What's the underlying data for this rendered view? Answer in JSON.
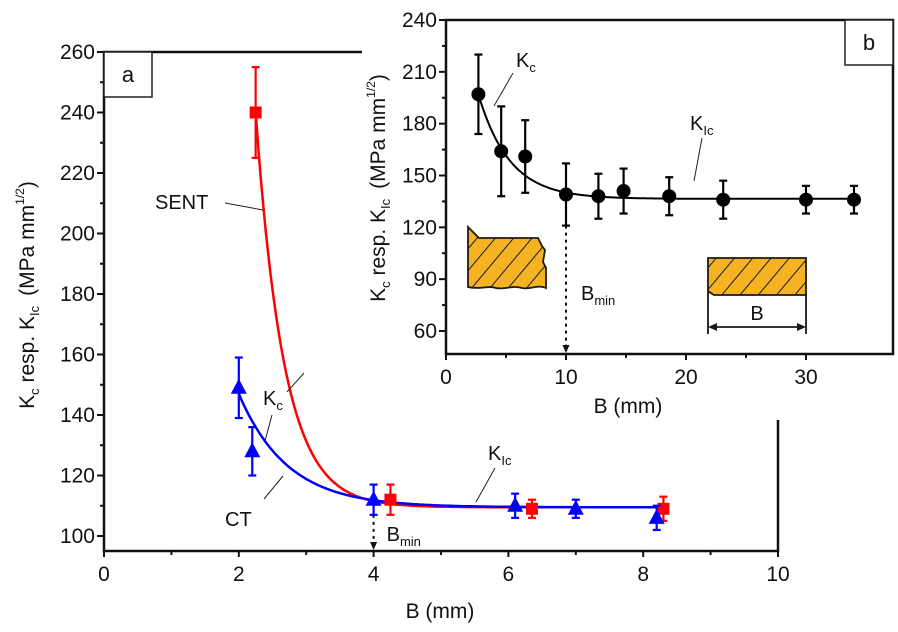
{
  "chart_data": [
    {
      "id": "a",
      "type": "scatter",
      "panel_label": "a",
      "xlabel": "B (mm)",
      "ylabel": "K_c resp. K_Ic (MPa mm^1/2)",
      "ylabel_parts": {
        "k1": "K",
        "k1_sub": "c",
        "mid": " resp. K",
        "k2_sub": "Ic",
        "units": "(MPa mm",
        "units_sup": "1/2",
        "units_close": ")"
      },
      "xlim": [
        0,
        10
      ],
      "ylim": [
        95,
        260
      ],
      "xticks": [
        0,
        2,
        4,
        6,
        8,
        10
      ],
      "xtick_labels": [
        "0",
        "2",
        "4",
        "6",
        "8",
        "10"
      ],
      "yticks": [
        100,
        120,
        140,
        160,
        180,
        200,
        220,
        240,
        260
      ],
      "ytick_labels": [
        "100",
        "120",
        "140",
        "160",
        "180",
        "200",
        "220",
        "240",
        "260"
      ],
      "grid": false,
      "series": [
        {
          "name": "SENT",
          "marker": "square",
          "color": "#ff0000",
          "x": [
            2.25,
            4.25,
            6.35,
            8.3
          ],
          "y": [
            240,
            112,
            109,
            109
          ],
          "yerr": [
            15,
            5,
            3,
            4
          ],
          "fit": {
            "type": "exponential-decay",
            "y0": 109.5,
            "A": 130.5,
            "x0": 2.25,
            "t": 0.42
          }
        },
        {
          "name": "CT",
          "marker": "triangle",
          "color": "#0000ff",
          "x": [
            2.0,
            2.2,
            4.0,
            6.1,
            7.0,
            8.2
          ],
          "y": [
            149,
            128,
            112,
            110,
            109,
            106
          ],
          "yerr": [
            10,
            8,
            5,
            4,
            3,
            4
          ],
          "fit": {
            "type": "exponential-decay",
            "y0": 109.5,
            "A": 37.5,
            "x0": 2.0,
            "t": 0.72
          }
        }
      ],
      "annotations": {
        "sent_label": "SENT",
        "ct_label": "CT",
        "kc_label": "K",
        "kc_sub": "c",
        "kic_label": "K",
        "kic_sub": "Ic",
        "bmin_label": "B",
        "bmin_sub": "min",
        "bmin_x": 4.0
      }
    },
    {
      "id": "b",
      "type": "scatter",
      "panel_label": "b",
      "xlabel": "B (mm)",
      "ylabel": "K_c resp. K_Ic (MPa mm^1/2)",
      "ylabel_parts": {
        "k1": "K",
        "k1_sub": "c",
        "mid": " resp. K",
        "k2_sub": "Ic",
        "units": "(MPa mm",
        "units_sup": "1/2",
        "units_close": ")"
      },
      "xlim": [
        0,
        37.2
      ],
      "ylim": [
        46,
        240
      ],
      "xticks": [
        0,
        10,
        20,
        30
      ],
      "xtick_labels": [
        "0",
        "10",
        "20",
        "30"
      ],
      "yticks": [
        60,
        90,
        120,
        150,
        180,
        210,
        240
      ],
      "ytick_labels": [
        "60",
        "90",
        "120",
        "150",
        "180",
        "210",
        "240"
      ],
      "grid": false,
      "series": [
        {
          "name": "K",
          "marker": "circle",
          "color": "#000000",
          "x": [
            2.7,
            4.6,
            6.6,
            10.0,
            12.7,
            14.8,
            18.6,
            23.1,
            30.0,
            34.0
          ],
          "y": [
            197,
            164,
            161,
            139,
            138,
            141,
            138,
            136,
            136,
            136
          ],
          "yerr": [
            23,
            26,
            21,
            18,
            13,
            13,
            11,
            11,
            8,
            8
          ],
          "fit": {
            "type": "exponential-decay",
            "y0": 136.5,
            "A": 60.5,
            "x0": 2.7,
            "t": 2.6
          }
        }
      ],
      "annotations": {
        "kc_label": "K",
        "kc_sub": "c",
        "kic_label": "K",
        "kic_sub": "Ic",
        "bmin_label": "B",
        "bmin_sub": "min",
        "bmin_x": 10.0,
        "specimen_dim_label": "B"
      }
    }
  ]
}
